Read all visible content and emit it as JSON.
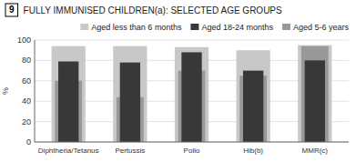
{
  "chart_data": {
    "type": "bar",
    "title": "FULLY IMMUNISED CHILDREN(a): SELECTED AGE GROUPS",
    "annotations": [
      "9"
    ],
    "ylabel": "%",
    "categories": [
      "Diphtheria/Tetanus",
      "Pertussis",
      "Polio",
      "Hib(b)",
      "MMR(c)"
    ],
    "series": [
      {
        "name": "Aged less than 6 months",
        "color": "#c8c8c8",
        "values": [
          94,
          94,
          93,
          90,
          95
        ]
      },
      {
        "name": "Aged 18-24 months",
        "color": "#383838",
        "values": [
          79,
          78,
          88,
          70,
          80
        ]
      },
      {
        "name": "Aged 5-6 years",
        "color": "#989898",
        "values": [
          60,
          44,
          70,
          65,
          94
        ]
      }
    ],
    "ylim": [
      0,
      100
    ],
    "yticks": [
      0,
      20,
      40,
      60,
      80,
      100
    ],
    "grid": true,
    "legend": "upper right"
  }
}
